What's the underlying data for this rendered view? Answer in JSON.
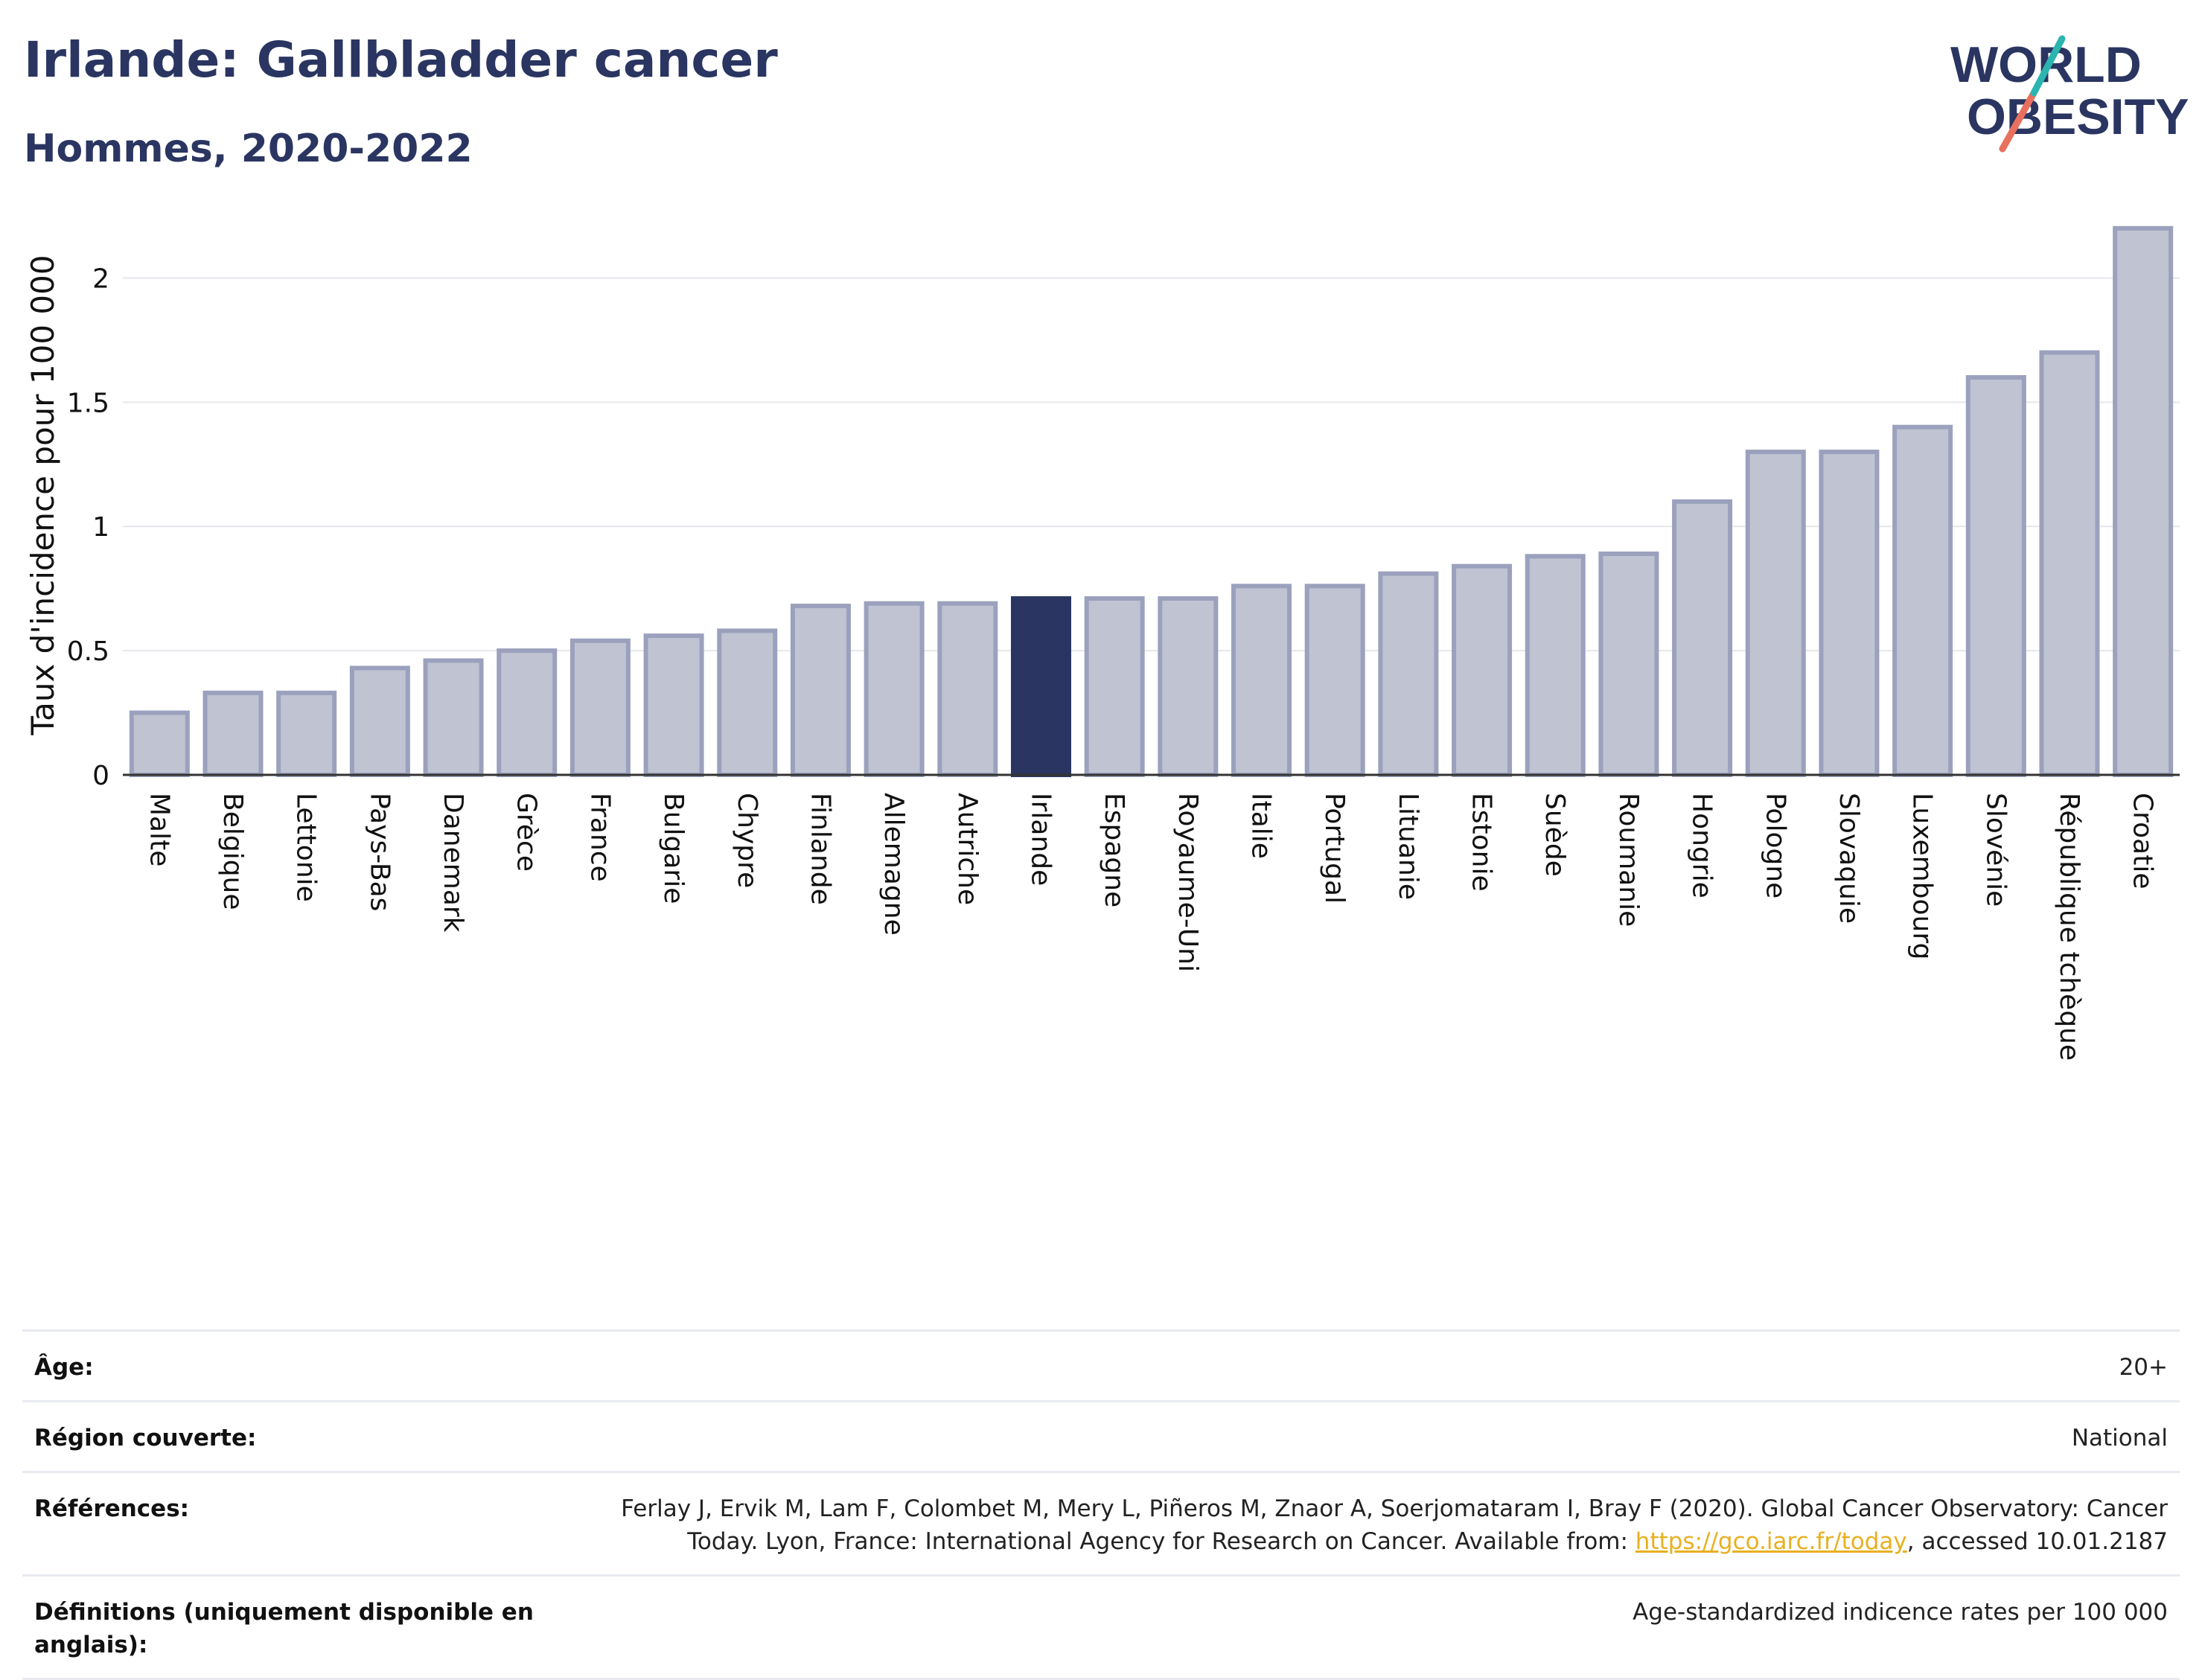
{
  "header": {
    "title": "Irlande: Gallbladder cancer",
    "subtitle": "Hommes, 2020-2022"
  },
  "logo": {
    "line1": "WORLD",
    "line2": "OBESITY"
  },
  "colors": {
    "bar": "#bfc3d2",
    "bar_border": "#9ba1bd",
    "highlight": "#2a3561",
    "grid": "#e6e7ec",
    "text": "#2a3561",
    "link": "#e8b020"
  },
  "chart_data": {
    "type": "bar",
    "ylabel": "Taux d'incidence pour 100 000",
    "ylim": [
      0,
      2.25
    ],
    "yticks": [
      0,
      0.5,
      1,
      1.5,
      2
    ],
    "ytick_labels": [
      "0",
      "0.5",
      "1",
      "1.5",
      "2"
    ],
    "grid": true,
    "highlight": "Irlande",
    "categories": [
      "Malte",
      "Belgique",
      "Lettonie",
      "Pays-Bas",
      "Danemark",
      "Grèce",
      "France",
      "Bulgarie",
      "Chypre",
      "Finlande",
      "Allemagne",
      "Autriche",
      "Irlande",
      "Espagne",
      "Royaume-Uni",
      "Italie",
      "Portugal",
      "Lituanie",
      "Estonie",
      "Suède",
      "Roumanie",
      "Hongrie",
      "Pologne",
      "Slovaquie",
      "Luxembourg",
      "Slovénie",
      "République tchèque",
      "Croatie"
    ],
    "values": [
      0.25,
      0.33,
      0.33,
      0.43,
      0.46,
      0.5,
      0.54,
      0.56,
      0.58,
      0.68,
      0.69,
      0.69,
      0.71,
      0.71,
      0.71,
      0.76,
      0.76,
      0.81,
      0.84,
      0.88,
      0.89,
      1.1,
      1.3,
      1.3,
      1.4,
      1.6,
      1.7,
      2.2
    ]
  },
  "info": {
    "rows": [
      {
        "label": "Âge:",
        "value": "20+"
      },
      {
        "label": "Région couverte:",
        "value": "National"
      },
      {
        "label": "Références:",
        "value": "Ferlay J, Ervik M, Lam F, Colombet M, Mery L, Piñeros M, Znaor A, Soerjomataram I, Bray F (2020). Global Cancer Observatory: Cancer Today. Lyon, France: International Agency for Research on Cancer. Available from: ",
        "link": "https://gco.iarc.fr/today",
        "value_suffix": ", accessed 10.01.2187"
      },
      {
        "label": "Définitions (uniquement disponible en anglais):",
        "value": "Age-standardized indicence rates per 100 000"
      }
    ]
  }
}
